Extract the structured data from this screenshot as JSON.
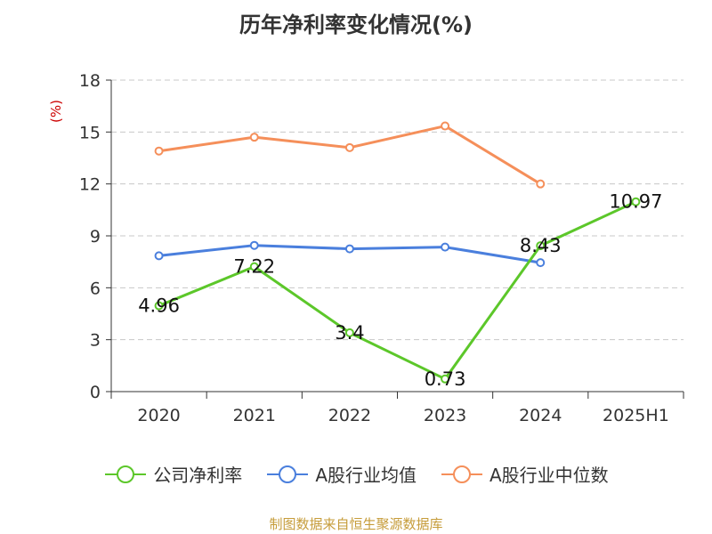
{
  "chart_data": {
    "type": "line",
    "title": "历年净利率变化情况(%)",
    "ylabel": "(%)",
    "xlabel": "",
    "categories": [
      "2020",
      "2021",
      "2022",
      "2023",
      "2024",
      "2025H1"
    ],
    "ylim": [
      0,
      18
    ],
    "yticks": [
      0,
      3,
      6,
      9,
      12,
      15,
      18
    ],
    "grid": true,
    "legend_position": "bottom",
    "series": [
      {
        "name": "公司净利率",
        "color": "#5cc72a",
        "values": [
          4.96,
          7.22,
          3.4,
          0.73,
          8.43,
          10.97
        ],
        "labels": [
          "4.96",
          "7.22",
          "3.4",
          "0.73",
          "8.43",
          "10.97"
        ]
      },
      {
        "name": "A股行业均值",
        "color": "#4a7fdd",
        "values": [
          7.85,
          8.45,
          8.25,
          8.35,
          7.45,
          null
        ]
      },
      {
        "name": "A股行业中位数",
        "color": "#f58f5a",
        "values": [
          13.9,
          14.7,
          14.1,
          15.35,
          12.0,
          null
        ]
      }
    ]
  },
  "source": "制图数据来自恒生聚源数据库"
}
